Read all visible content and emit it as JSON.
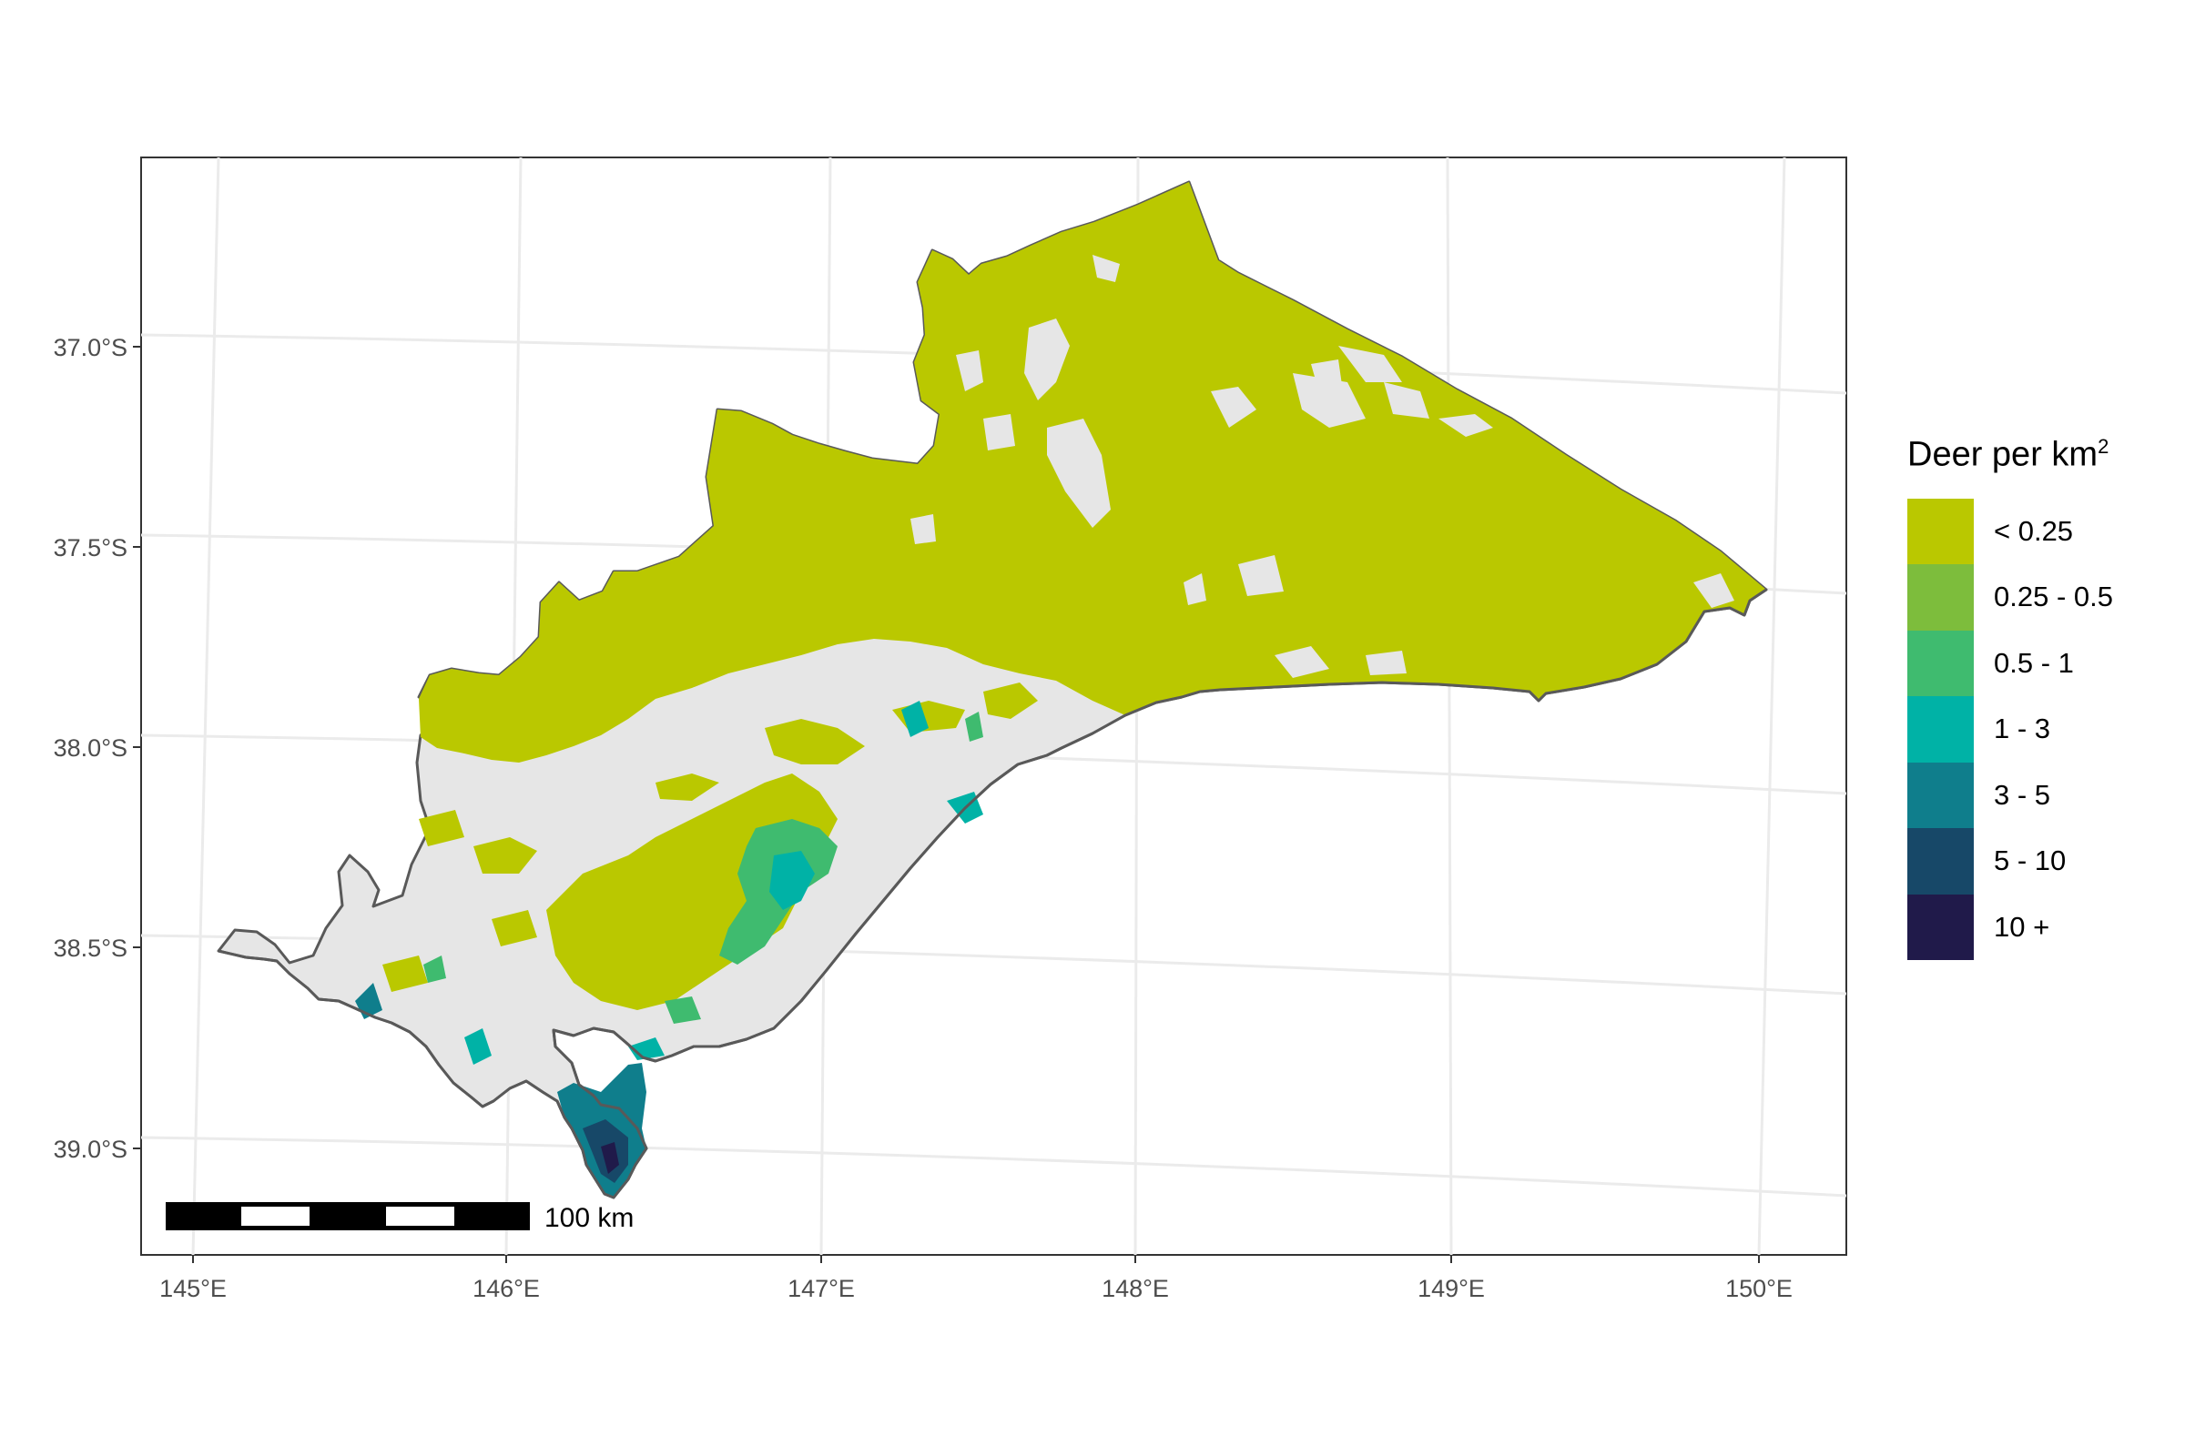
{
  "map": {
    "x_axis_ticks": [
      "145°E",
      "146°E",
      "147°E",
      "148°E",
      "149°E",
      "150°E"
    ],
    "y_axis_ticks": [
      "37.0°S",
      "37.5°S",
      "38.0°S",
      "38.5°S",
      "39.0°S"
    ],
    "scale_bar": {
      "label": "100 km",
      "segments": 5
    },
    "legend": {
      "title": "Deer per km",
      "title_superscript": "2",
      "items": [
        {
          "label": "< 0.25",
          "color": "#bac800"
        },
        {
          "label": "0.25 - 0.5",
          "color": "#7dbd3c"
        },
        {
          "label": "0.5 - 1",
          "color": "#3fbb6f"
        },
        {
          "label": "1 - 3",
          "color": "#00b2a6"
        },
        {
          "label": "3 - 5",
          "color": "#0f7e8c"
        },
        {
          "label": "5 - 10",
          "color": "#174868"
        },
        {
          "label": "10 +",
          "color": "#201a4a"
        }
      ],
      "nodata_color": "#e6e6e6",
      "outline_color": "#595959"
    }
  }
}
